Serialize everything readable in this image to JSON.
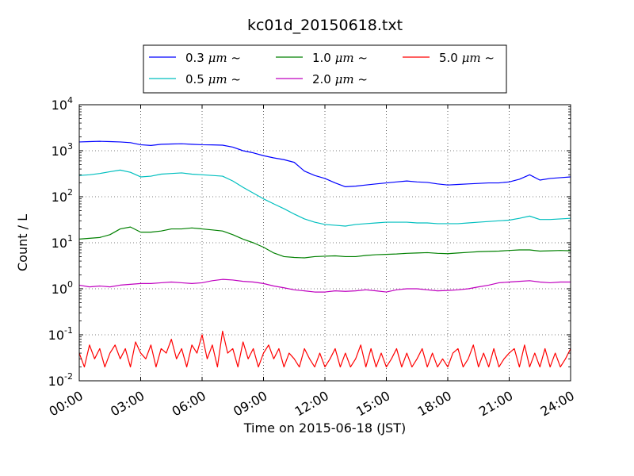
{
  "chart_data": {
    "type": "line",
    "title": "kc01d_20150618.txt",
    "xlabel": "Time on 2015-06-18 (JST)",
    "ylabel": "Count / L",
    "x_unit": "hours",
    "xlim": [
      0,
      24
    ],
    "ylim": [
      0.01,
      10000
    ],
    "yscale": "log",
    "grid": true,
    "legend_position": "top",
    "x_ticks": [
      {
        "value": 0,
        "label": "00:00"
      },
      {
        "value": 3,
        "label": "03:00"
      },
      {
        "value": 6,
        "label": "06:00"
      },
      {
        "value": 9,
        "label": "09:00"
      },
      {
        "value": 12,
        "label": "12:00"
      },
      {
        "value": 15,
        "label": "15:00"
      },
      {
        "value": 18,
        "label": "18:00"
      },
      {
        "value": 21,
        "label": "21:00"
      },
      {
        "value": 24,
        "label": "24:00"
      }
    ],
    "y_ticks": [
      {
        "value": 0.01,
        "base": "10",
        "exp": "-2"
      },
      {
        "value": 0.1,
        "base": "10",
        "exp": "-1"
      },
      {
        "value": 1,
        "base": "10",
        "exp": "0"
      },
      {
        "value": 10,
        "base": "10",
        "exp": "1"
      },
      {
        "value": 100,
        "base": "10",
        "exp": "2"
      },
      {
        "value": 1000,
        "base": "10",
        "exp": "3"
      },
      {
        "value": 10000,
        "base": "10",
        "exp": "4"
      }
    ],
    "series": [
      {
        "name": "0.3 μm ~",
        "name_prefix": "0.3 ",
        "name_unit": "μm",
        "name_suffix": " ~",
        "color": "#0000ff",
        "x": [
          0,
          0.5,
          1,
          1.5,
          2,
          2.5,
          3,
          3.5,
          4,
          4.5,
          5,
          5.5,
          6,
          6.5,
          7,
          7.5,
          8,
          8.5,
          9,
          9.5,
          10,
          10.5,
          11,
          11.5,
          12,
          12.5,
          13,
          13.5,
          14,
          14.5,
          15,
          15.5,
          16,
          16.5,
          17,
          17.5,
          18,
          18.5,
          19,
          19.5,
          20,
          20.5,
          21,
          21.5,
          22,
          22.5,
          23,
          23.5,
          24
        ],
        "y": [
          1550,
          1580,
          1600,
          1580,
          1550,
          1500,
          1350,
          1300,
          1380,
          1400,
          1420,
          1380,
          1350,
          1340,
          1320,
          1200,
          1000,
          900,
          780,
          700,
          640,
          560,
          360,
          290,
          250,
          200,
          165,
          170,
          180,
          190,
          200,
          210,
          220,
          210,
          205,
          190,
          180,
          185,
          190,
          195,
          200,
          200,
          210,
          240,
          300,
          230,
          250,
          260,
          270
        ]
      },
      {
        "name": "0.5 μm ~",
        "name_prefix": "0.5 ",
        "name_unit": "μm",
        "name_suffix": " ~",
        "color": "#00bfbf",
        "x": [
          0,
          0.5,
          1,
          1.5,
          2,
          2.5,
          3,
          3.5,
          4,
          4.5,
          5,
          5.5,
          6,
          6.5,
          7,
          7.5,
          8,
          8.5,
          9,
          9.5,
          10,
          10.5,
          11,
          11.5,
          12,
          12.5,
          13,
          13.5,
          14,
          14.5,
          15,
          15.5,
          16,
          16.5,
          17,
          17.5,
          18,
          18.5,
          19,
          19.5,
          20,
          20.5,
          21,
          21.5,
          22,
          22.5,
          23,
          23.5,
          24
        ],
        "y": [
          290,
          300,
          320,
          350,
          380,
          340,
          270,
          280,
          310,
          320,
          330,
          310,
          300,
          290,
          280,
          220,
          160,
          120,
          90,
          70,
          55,
          42,
          33,
          28,
          25,
          24,
          23,
          25,
          26,
          27,
          28,
          28,
          28,
          27,
          27,
          26,
          26,
          26,
          27,
          28,
          29,
          30,
          31,
          34,
          38,
          32,
          32,
          33,
          34
        ]
      },
      {
        "name": "1.0 μm ~",
        "name_prefix": "1.0 ",
        "name_unit": "μm",
        "name_suffix": " ~",
        "color": "#008000",
        "x": [
          0,
          0.5,
          1,
          1.5,
          2,
          2.5,
          3,
          3.5,
          4,
          4.5,
          5,
          5.5,
          6,
          6.5,
          7,
          7.5,
          8,
          8.5,
          9,
          9.5,
          10,
          10.5,
          11,
          11.5,
          12,
          12.5,
          13,
          13.5,
          14,
          14.5,
          15,
          15.5,
          16,
          16.5,
          17,
          17.5,
          18,
          18.5,
          19,
          19.5,
          20,
          20.5,
          21,
          21.5,
          22,
          22.5,
          23,
          23.5,
          24
        ],
        "y": [
          12,
          12.5,
          13,
          15,
          20,
          22,
          17,
          17,
          18,
          20,
          20,
          21,
          20,
          19,
          18,
          15,
          12,
          10,
          8,
          6,
          5,
          4.8,
          4.7,
          5,
          5.1,
          5.2,
          5,
          5,
          5.3,
          5.5,
          5.6,
          5.7,
          5.9,
          6,
          6.1,
          5.9,
          5.8,
          6,
          6.2,
          6.4,
          6.5,
          6.6,
          6.8,
          7,
          7,
          6.6,
          6.7,
          6.8,
          6.7
        ]
      },
      {
        "name": "2.0 μm ~",
        "name_prefix": "2.0 ",
        "name_unit": "μm",
        "name_suffix": " ~",
        "color": "#bf00bf",
        "x": [
          0,
          0.5,
          1,
          1.5,
          2,
          2.5,
          3,
          3.5,
          4,
          4.5,
          5,
          5.5,
          6,
          6.5,
          7,
          7.5,
          8,
          8.5,
          9,
          9.5,
          10,
          10.5,
          11,
          11.5,
          12,
          12.5,
          13,
          13.5,
          14,
          14.5,
          15,
          15.5,
          16,
          16.5,
          17,
          17.5,
          18,
          18.5,
          19,
          19.5,
          20,
          20.5,
          21,
          21.5,
          22,
          22.5,
          23,
          23.5,
          24
        ],
        "y": [
          1.2,
          1.1,
          1.15,
          1.1,
          1.2,
          1.25,
          1.3,
          1.3,
          1.35,
          1.4,
          1.35,
          1.3,
          1.35,
          1.5,
          1.6,
          1.55,
          1.45,
          1.4,
          1.3,
          1.15,
          1.05,
          0.95,
          0.9,
          0.85,
          0.85,
          0.9,
          0.88,
          0.9,
          0.95,
          0.9,
          0.85,
          0.95,
          1,
          1,
          0.95,
          0.9,
          0.92,
          0.95,
          1,
          1.1,
          1.2,
          1.35,
          1.4,
          1.45,
          1.5,
          1.4,
          1.35,
          1.4,
          1.4
        ]
      },
      {
        "name": "5.0 μm ~",
        "name_prefix": "5.0 ",
        "name_unit": "μm",
        "name_suffix": " ~",
        "color": "#ff0000",
        "x": [
          0,
          0.25,
          0.5,
          0.75,
          1,
          1.25,
          1.5,
          1.75,
          2,
          2.25,
          2.5,
          2.75,
          3,
          3.25,
          3.5,
          3.75,
          4,
          4.25,
          4.5,
          4.75,
          5,
          5.25,
          5.5,
          5.75,
          6,
          6.25,
          6.5,
          6.75,
          7,
          7.25,
          7.5,
          7.75,
          8,
          8.25,
          8.5,
          8.75,
          9,
          9.25,
          9.5,
          9.75,
          10,
          10.25,
          10.5,
          10.75,
          11,
          11.25,
          11.5,
          11.75,
          12,
          12.25,
          12.5,
          12.75,
          13,
          13.25,
          13.5,
          13.75,
          14,
          14.25,
          14.5,
          14.75,
          15,
          15.25,
          15.5,
          15.75,
          16,
          16.25,
          16.5,
          16.75,
          17,
          17.25,
          17.5,
          17.75,
          18,
          18.25,
          18.5,
          18.75,
          19,
          19.25,
          19.5,
          19.75,
          20,
          20.25,
          20.5,
          20.75,
          21,
          21.25,
          21.5,
          21.75,
          22,
          22.25,
          22.5,
          22.75,
          23,
          23.25,
          23.5,
          23.75,
          24
        ],
        "y": [
          0.04,
          0.02,
          0.06,
          0.03,
          0.05,
          0.02,
          0.04,
          0.06,
          0.03,
          0.05,
          0.02,
          0.07,
          0.04,
          0.03,
          0.06,
          0.02,
          0.05,
          0.04,
          0.08,
          0.03,
          0.05,
          0.02,
          0.06,
          0.04,
          0.1,
          0.03,
          0.06,
          0.02,
          0.12,
          0.04,
          0.05,
          0.02,
          0.07,
          0.03,
          0.05,
          0.02,
          0.04,
          0.06,
          0.03,
          0.05,
          0.02,
          0.04,
          0.03,
          0.02,
          0.05,
          0.03,
          0.02,
          0.04,
          0.02,
          0.03,
          0.05,
          0.02,
          0.04,
          0.02,
          0.03,
          0.06,
          0.02,
          0.05,
          0.02,
          0.04,
          0.02,
          0.03,
          0.05,
          0.02,
          0.04,
          0.02,
          0.03,
          0.05,
          0.02,
          0.04,
          0.02,
          0.03,
          0.02,
          0.04,
          0.05,
          0.02,
          0.03,
          0.06,
          0.02,
          0.04,
          0.02,
          0.05,
          0.02,
          0.03,
          0.04,
          0.05,
          0.02,
          0.06,
          0.02,
          0.04,
          0.02,
          0.05,
          0.02,
          0.04,
          0.02,
          0.03,
          0.05
        ]
      }
    ]
  }
}
